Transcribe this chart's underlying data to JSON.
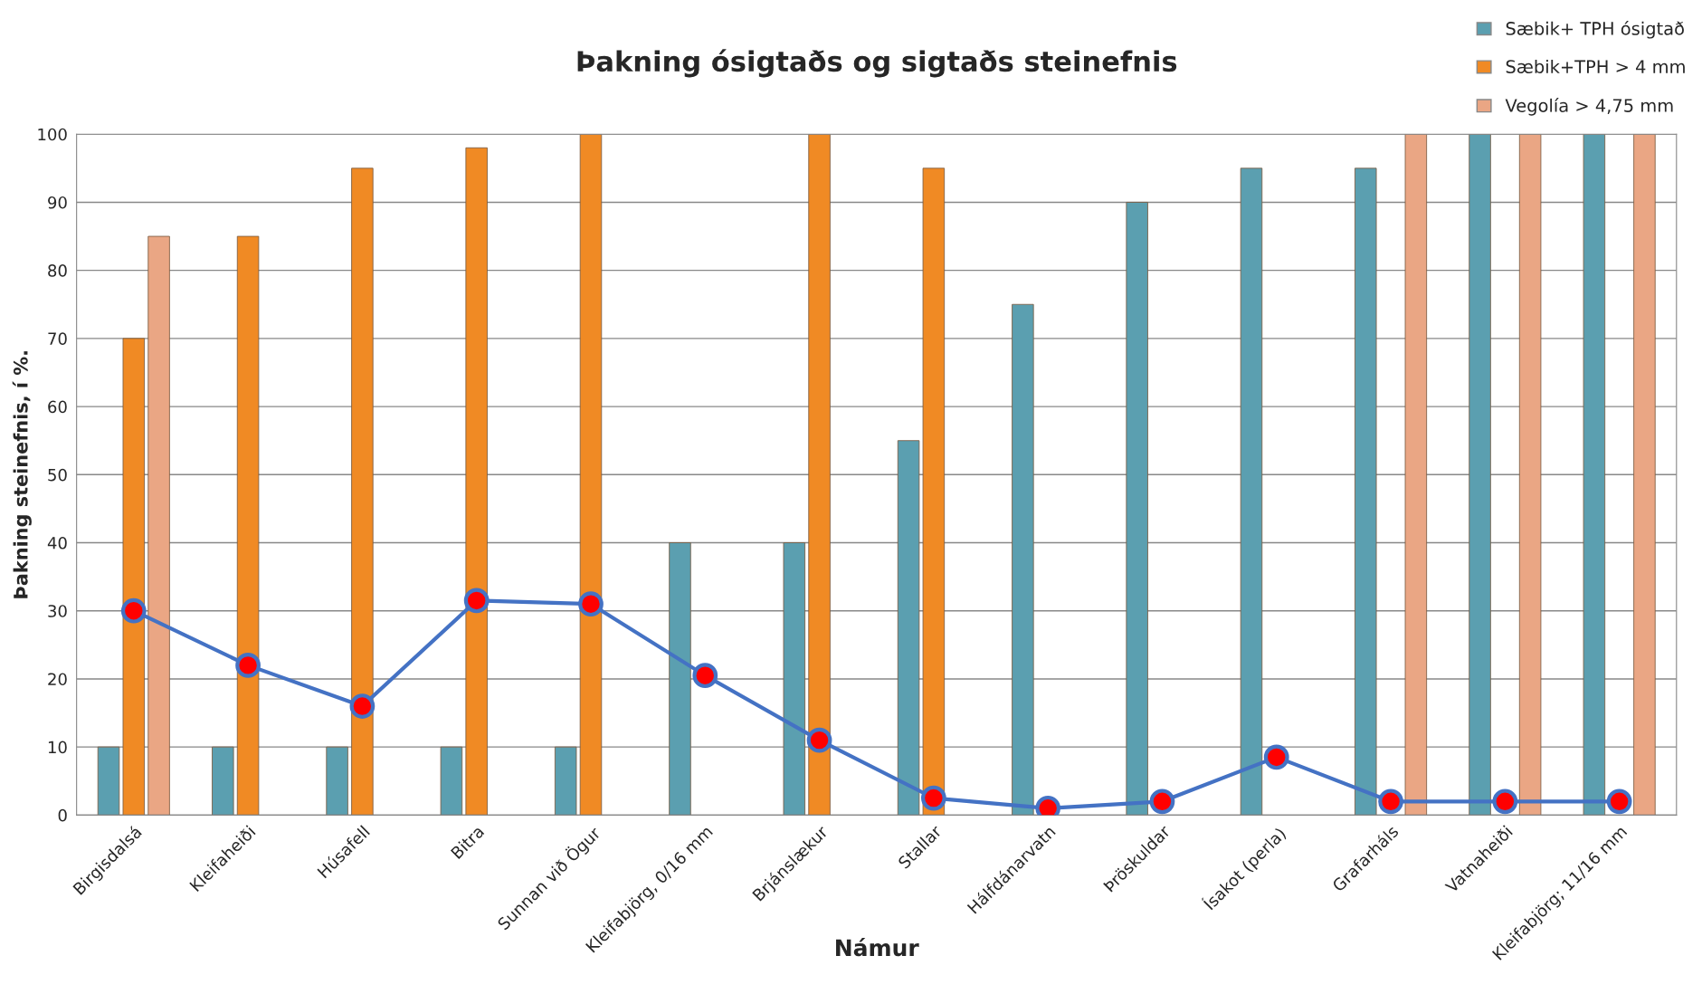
{
  "chart_data": {
    "type": "bar",
    "title": "Þakning ósigtaðs og sigtaðs steinefnis",
    "xlabel": "Námur",
    "ylabel": "Þakning steinefnis, í %.",
    "categories": [
      "Birgisdalsá",
      "Kleifaheiði",
      "Húsafell",
      "Bitra",
      "Sunnan við Ögur",
      "Kleifabjörg, 0/16 mm",
      "Brjánslækur",
      "Stallar",
      "Hálfdánarvatn",
      "Þröskuldar",
      "Ísakot (perla)",
      "Grafarháls",
      "Vatnaheiði",
      "Kleifabjörg; 11/16 mm"
    ],
    "series": [
      {
        "name": "Sæbik+ TPH ósigtað",
        "color": "#5b9fb0",
        "values": [
          10,
          10,
          10,
          10,
          10,
          40,
          40,
          55,
          75,
          90,
          95,
          95,
          100,
          100
        ]
      },
      {
        "name": "Sæbik+TPH > 4 mm",
        "color": "#f08a24",
        "values": [
          70,
          85,
          95,
          98,
          100,
          null,
          100,
          95,
          null,
          null,
          null,
          null,
          null,
          null
        ]
      },
      {
        "name": "Vegolía > 4,75 mm",
        "color": "#eaa684",
        "values": [
          85,
          null,
          null,
          null,
          null,
          null,
          null,
          null,
          null,
          null,
          null,
          100,
          100,
          100
        ]
      },
      {
        "type": "line",
        "color": "#4472c4",
        "marker": "circle",
        "line_style": "solid",
        "values": [
          30,
          22,
          16,
          31.5,
          31,
          20.5,
          11,
          2.5,
          1,
          2,
          8.5,
          2,
          2,
          2
        ]
      }
    ],
    "ylim": [
      0,
      100
    ],
    "yticks": [
      0,
      10,
      20,
      30,
      40,
      50,
      60,
      70,
      80,
      90,
      100
    ],
    "grid": "y",
    "legend": "top right"
  }
}
